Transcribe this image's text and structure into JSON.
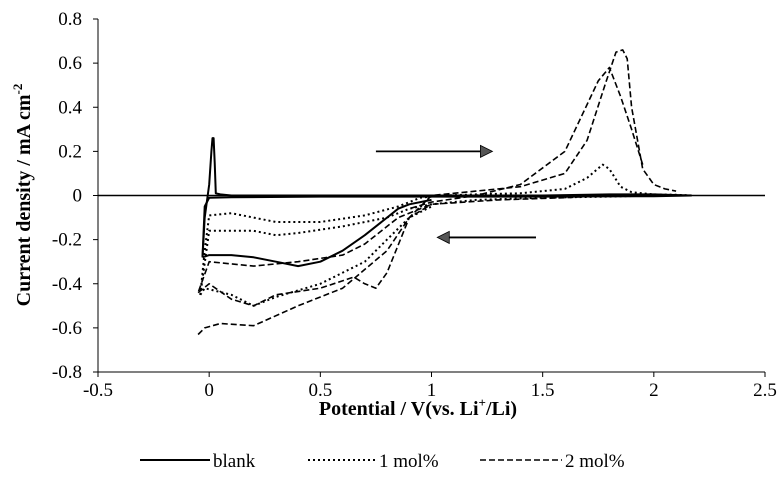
{
  "chart_data": {
    "type": "line",
    "title": "",
    "xlabel": "Potential / V(vs. Li+/Li)",
    "ylabel": "Current density / mA cm-2",
    "xlim": [
      -0.5,
      2.5
    ],
    "ylim": [
      -0.8,
      0.8
    ],
    "x_ticks": [
      "-0.5",
      "0",
      "0.5",
      "1",
      "1.5",
      "2",
      "2.5"
    ],
    "y_ticks": [
      "0.8",
      "0.6",
      "0.4",
      "0.2",
      "0",
      "-0.2",
      "-0.4",
      "-0.6",
      "-0.8"
    ],
    "grid": false,
    "legend_position": "bottom",
    "legend": [
      "blank",
      "1 mol%",
      "2 mol%"
    ],
    "series": [
      {
        "name": "blank",
        "style": "solid",
        "cycles": [
          {
            "x": [
              -0.03,
              -0.02,
              0.0,
              0.01,
              0.015,
              0.02,
              0.025,
              0.03,
              0.05,
              0.1,
              0.5,
              1.0,
              1.5,
              1.8,
              2.0,
              2.17
            ],
            "y": [
              -0.28,
              -0.1,
              0.05,
              0.2,
              0.26,
              0.26,
              0.15,
              0.01,
              0.005,
              0.0,
              0.0,
              0.0,
              0.0,
              0.005,
              0.005,
              0.0
            ]
          },
          {
            "x": [
              2.17,
              2.0,
              1.5,
              1.0,
              0.5,
              0.1,
              0.0,
              -0.02,
              -0.03
            ],
            "y": [
              0.0,
              -0.003,
              -0.005,
              -0.005,
              -0.005,
              -0.008,
              -0.01,
              -0.05,
              -0.28
            ]
          },
          {
            "x": [
              -0.03,
              0.0,
              0.1,
              0.2,
              0.3,
              0.4,
              0.5,
              0.6,
              0.7,
              0.8,
              0.85,
              0.9,
              1.0
            ],
            "y": [
              -0.28,
              -0.27,
              -0.27,
              -0.28,
              -0.3,
              -0.32,
              -0.3,
              -0.25,
              -0.18,
              -0.1,
              -0.06,
              -0.04,
              -0.02
            ]
          }
        ]
      },
      {
        "name": "1 mol%",
        "style": "dotted",
        "cycles": [
          {
            "x": [
              -0.04,
              -0.02,
              0.0,
              0.1,
              0.2,
              0.3,
              0.5,
              0.7,
              0.85,
              0.95,
              1.05,
              1.2,
              1.4,
              1.6,
              1.7,
              1.77,
              1.8,
              1.85,
              1.9,
              2.0,
              2.1,
              2.17
            ],
            "y": [
              -0.45,
              -0.25,
              -0.09,
              -0.08,
              -0.1,
              -0.12,
              -0.12,
              -0.09,
              -0.05,
              -0.01,
              0.0,
              0.005,
              0.01,
              0.03,
              0.08,
              0.14,
              0.12,
              0.04,
              0.015,
              0.005,
              0.003,
              0.0
            ]
          },
          {
            "x": [
              2.17,
              2.0,
              1.8,
              1.5,
              1.2,
              1.0,
              0.9,
              0.8,
              0.6,
              0.4,
              0.3,
              0.2,
              0.1,
              0.0,
              -0.04
            ],
            "y": [
              0.0,
              0.0,
              -0.005,
              -0.01,
              -0.02,
              -0.04,
              -0.06,
              -0.1,
              -0.14,
              -0.17,
              -0.18,
              -0.16,
              -0.16,
              -0.16,
              -0.45
            ]
          },
          {
            "x": [
              -0.04,
              -0.02,
              0.1,
              0.2,
              0.3,
              0.5,
              0.7,
              0.8,
              0.9,
              1.0
            ],
            "y": [
              -0.45,
              -0.42,
              -0.45,
              -0.5,
              -0.46,
              -0.4,
              -0.3,
              -0.2,
              -0.1,
              -0.05
            ]
          }
        ]
      },
      {
        "name": "2 mol%",
        "style": "dashed",
        "cycles": [
          {
            "x": [
              -0.05,
              -0.02,
              0.05,
              0.2,
              0.4,
              0.6,
              0.8,
              0.9,
              1.0,
              1.2,
              1.4,
              1.6,
              1.7,
              1.78,
              1.83,
              1.86,
              1.88,
              1.9,
              1.95,
              2.0,
              2.05,
              2.1
            ],
            "y": [
              -0.63,
              -0.6,
              -0.58,
              -0.59,
              -0.5,
              -0.42,
              -0.25,
              -0.1,
              0.0,
              0.02,
              0.04,
              0.1,
              0.25,
              0.5,
              0.65,
              0.66,
              0.62,
              0.4,
              0.12,
              0.05,
              0.03,
              0.02
            ]
          },
          {
            "x": [
              1.95,
              1.9,
              1.85,
              1.8,
              1.75,
              1.6,
              1.4,
              1.2,
              1.0,
              0.9
            ],
            "y": [
              0.14,
              0.3,
              0.45,
              0.58,
              0.52,
              0.2,
              0.05,
              0.0,
              -0.03,
              -0.06
            ]
          },
          {
            "x": [
              1.8,
              1.6,
              1.3,
              1.0,
              0.85,
              0.7,
              0.6,
              0.4,
              0.2,
              0.0,
              -0.05
            ],
            "y": [
              0.0,
              -0.01,
              -0.02,
              -0.04,
              -0.1,
              -0.22,
              -0.27,
              -0.3,
              -0.32,
              -0.3,
              -0.44
            ]
          },
          {
            "x": [
              -0.05,
              0.0,
              0.1,
              0.2,
              0.3,
              0.5,
              0.65,
              0.7,
              0.75,
              0.8,
              0.9,
              1.0
            ],
            "y": [
              -0.44,
              -0.4,
              -0.47,
              -0.5,
              -0.45,
              -0.42,
              -0.37,
              -0.4,
              -0.42,
              -0.35,
              -0.1,
              -0.04
            ]
          }
        ]
      }
    ],
    "annotations": [
      {
        "type": "arrow",
        "direction": "right",
        "x_from": 0.75,
        "x_to": 1.22,
        "y": 0.2
      },
      {
        "type": "arrow",
        "direction": "left",
        "x_from": 1.47,
        "x_to": 1.08,
        "y": -0.19
      }
    ]
  }
}
